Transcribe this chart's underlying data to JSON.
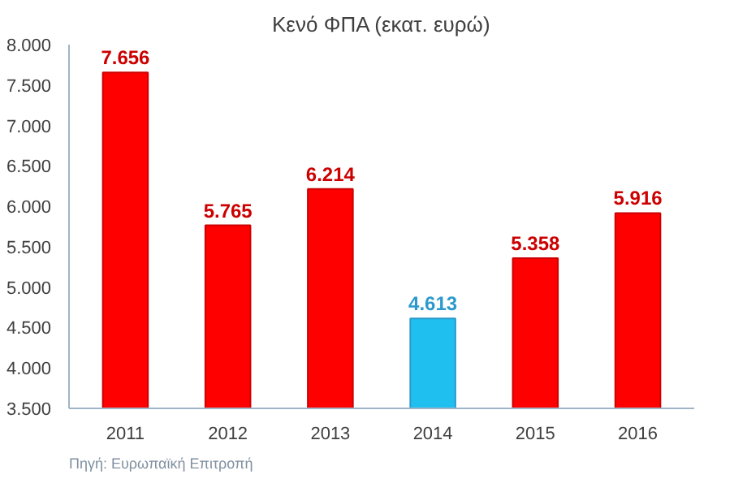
{
  "chart_data": {
    "type": "bar",
    "title": "Κενό ΦΠΑ (εκατ. ευρώ)",
    "categories": [
      "2011",
      "2012",
      "2013",
      "2014",
      "2015",
      "2016"
    ],
    "values": [
      7656,
      5765,
      6214,
      4613,
      5358,
      5916
    ],
    "colors": [
      "#ff0000",
      "#ff0000",
      "#ff0000",
      "#1fc0f0",
      "#ff0000",
      "#ff0000"
    ],
    "value_labels": [
      "7.656",
      "5.765",
      "6.214",
      "4.613",
      "5.358",
      "5.916"
    ],
    "ylim": [
      3500,
      8000
    ],
    "yticks": [
      {
        "value": 3500,
        "label": "3.500"
      },
      {
        "value": 4000,
        "label": "4.000"
      },
      {
        "value": 4500,
        "label": "4.500"
      },
      {
        "value": 5000,
        "label": "5.000"
      },
      {
        "value": 5500,
        "label": "5.500"
      },
      {
        "value": 6000,
        "label": "6.000"
      },
      {
        "value": 6500,
        "label": "6.500"
      },
      {
        "value": 7000,
        "label": "7.000"
      },
      {
        "value": 7500,
        "label": "7.500"
      },
      {
        "value": 8000,
        "label": "8.000"
      }
    ],
    "grid": false,
    "annotations": [
      "Πηγή: Ευρωπαϊκή Επιτροπή"
    ]
  }
}
